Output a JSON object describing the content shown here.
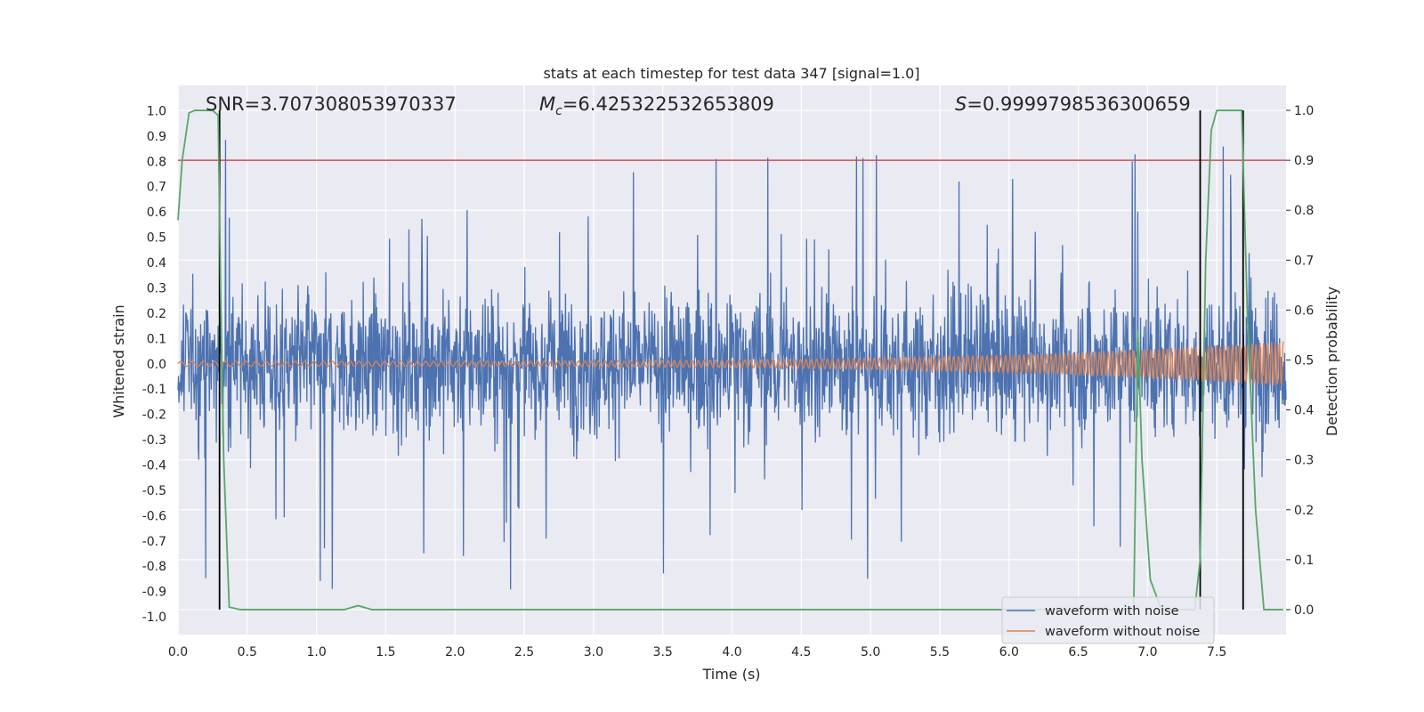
{
  "chart_data": {
    "type": "line",
    "title": "stats at each timestep for test data 347 [signal=1.0]",
    "xlabel": "Time (s)",
    "ylabel_left": "Whitened strain",
    "ylabel_right": "Detection probability",
    "xlim": [
      0.0,
      8.0
    ],
    "ylim_left": [
      -1.07,
      1.1
    ],
    "ylim_right": [
      -0.05,
      1.05
    ],
    "xticks": [
      "0.0",
      "0.5",
      "1.0",
      "1.5",
      "2.0",
      "2.5",
      "3.0",
      "3.5",
      "4.0",
      "4.5",
      "5.0",
      "5.5",
      "6.0",
      "6.5",
      "7.0",
      "7.5"
    ],
    "yticks_left": [
      "1.0",
      "0.9",
      "0.8",
      "0.7",
      "0.6",
      "0.5",
      "0.4",
      "0.3",
      "0.2",
      "0.1",
      "0.0",
      "-0.1",
      "-0.2",
      "-0.3",
      "-0.4",
      "-0.5",
      "-0.6",
      "-0.7",
      "-0.8",
      "-0.9",
      "-1.0"
    ],
    "yticks_right": [
      "1.0",
      "0.9",
      "0.8",
      "0.7",
      "0.6",
      "0.5",
      "0.4",
      "0.3",
      "0.2",
      "0.1",
      "0.0"
    ],
    "annotations": {
      "snr": "SNR=3.707308053970337",
      "mc_prefix": "M",
      "mc_sub": "c",
      "mc_value": "=6.425322532653809",
      "s_prefix": "S",
      "s_value": "=0.9999798536300659"
    },
    "threshold": {
      "axis": "right",
      "value": 0.9,
      "color": "#c44e52"
    },
    "vertical_markers": {
      "x": [
        0.3,
        7.38,
        7.69
      ],
      "color": "#000000"
    },
    "series": [
      {
        "name": "waveform with noise",
        "axis": "left",
        "color": "#4c72b0",
        "envelope_typical": 0.4,
        "envelope_peak": 0.9
      },
      {
        "name": "waveform without noise",
        "axis": "left",
        "color": "#dd8452",
        "amplitude_start": 0.01,
        "amplitude_end": 0.09
      },
      {
        "name": "detection probability",
        "axis": "right",
        "color": "#55a868",
        "x": [
          0.0,
          0.03,
          0.08,
          0.12,
          0.18,
          0.25,
          0.29,
          0.31,
          0.33,
          0.37,
          0.45,
          1.0,
          1.2,
          1.3,
          1.4,
          1.6,
          2.0,
          6.8,
          6.9,
          6.93,
          6.96,
          7.02,
          7.1,
          7.2,
          7.3,
          7.34,
          7.38,
          7.42,
          7.46,
          7.5,
          7.6,
          7.68,
          7.72,
          7.78,
          7.84,
          7.9,
          7.98
        ],
        "y": [
          0.78,
          0.9,
          0.995,
          1.0,
          1.0,
          1.0,
          0.99,
          0.6,
          0.3,
          0.005,
          0.0,
          0.0,
          0.0,
          0.008,
          0.0,
          0.0,
          0.0,
          0.0,
          0.0,
          0.56,
          0.3,
          0.06,
          0.0,
          0.0,
          0.0,
          0.0,
          0.1,
          0.7,
          0.96,
          1.0,
          1.0,
          1.0,
          0.6,
          0.2,
          0.0,
          0.0,
          0.0
        ]
      }
    ],
    "legend": {
      "placement": "lower-right",
      "entries": [
        "waveform with noise",
        "waveform without noise"
      ]
    }
  }
}
